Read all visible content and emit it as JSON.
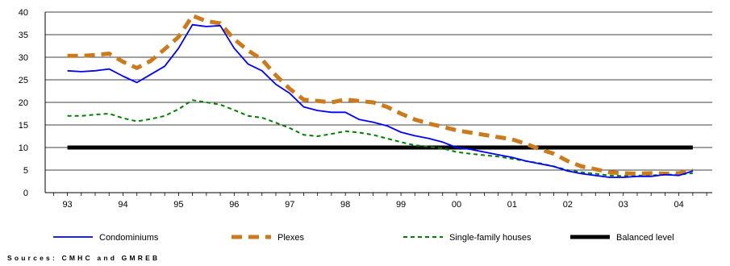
{
  "chart_data": {
    "type": "line",
    "ylim": [
      0,
      40
    ],
    "yticks": [
      0,
      5,
      10,
      15,
      20,
      25,
      30,
      35,
      40
    ],
    "categories": [
      "93",
      "94",
      "95",
      "96",
      "97",
      "98",
      "99",
      "00",
      "01",
      "02",
      "03",
      "04"
    ],
    "grid": "horizontal",
    "legend_position": "bottom",
    "series": [
      {
        "name": "Condominiums",
        "color": "#0000ff",
        "style": "solid",
        "x": [
          93.0,
          93.25,
          93.5,
          93.75,
          94.0,
          94.25,
          94.5,
          94.75,
          95.0,
          95.25,
          95.5,
          95.75,
          96.0,
          96.25,
          96.5,
          96.75,
          97.0,
          97.25,
          97.5,
          97.75,
          98.0,
          98.25,
          98.5,
          98.75,
          99.0,
          99.25,
          99.5,
          99.75,
          100.0,
          100.25,
          100.5,
          100.75,
          101.0,
          101.25,
          101.5,
          101.75,
          102.0,
          102.25,
          102.5,
          102.75,
          103.0,
          103.25,
          103.5,
          103.75,
          104.0,
          104.25
        ],
        "values": [
          27.0,
          26.8,
          27.0,
          27.4,
          25.8,
          24.4,
          26.2,
          28.0,
          32.0,
          37.2,
          36.8,
          37.0,
          32.0,
          28.5,
          27.0,
          24.0,
          22.0,
          19.0,
          18.2,
          17.8,
          17.8,
          16.2,
          15.6,
          14.8,
          13.4,
          12.6,
          12.0,
          11.2,
          10.0,
          9.6,
          9.0,
          8.4,
          7.8,
          7.0,
          6.4,
          5.8,
          4.8,
          4.2,
          3.8,
          3.4,
          3.4,
          3.6,
          3.6,
          4.0,
          3.8,
          4.8
        ]
      },
      {
        "name": "Plexes",
        "color": "#cc7a1a",
        "style": "dashed-thick",
        "x": [
          93.0,
          93.25,
          93.5,
          93.75,
          94.0,
          94.25,
          94.5,
          94.75,
          95.0,
          95.25,
          95.5,
          95.75,
          96.0,
          96.25,
          96.5,
          96.75,
          97.0,
          97.25,
          97.5,
          97.75,
          98.0,
          98.25,
          98.5,
          98.75,
          99.0,
          99.25,
          99.5,
          99.75,
          100.0,
          100.25,
          100.5,
          100.75,
          101.0,
          101.25,
          101.5,
          101.75,
          102.0,
          102.25,
          102.5,
          102.75,
          103.0,
          103.25,
          103.5,
          103.75,
          104.0,
          104.25
        ],
        "values": [
          30.3,
          30.3,
          30.5,
          30.8,
          29.0,
          27.6,
          29.2,
          31.8,
          34.5,
          39.2,
          38.0,
          37.5,
          34.0,
          31.5,
          29.5,
          26.0,
          23.0,
          20.6,
          20.3,
          20.0,
          20.6,
          20.3,
          20.0,
          19.0,
          17.5,
          16.2,
          15.3,
          14.6,
          13.8,
          13.3,
          12.8,
          12.3,
          11.8,
          10.8,
          9.6,
          8.6,
          7.0,
          5.8,
          5.2,
          4.5,
          4.3,
          4.2,
          4.3,
          4.2,
          4.3,
          5.0
        ]
      },
      {
        "name": "Single-family houses",
        "color": "#008000",
        "style": "dashed",
        "x": [
          93.0,
          93.25,
          93.5,
          93.75,
          94.0,
          94.25,
          94.5,
          94.75,
          95.0,
          95.25,
          95.5,
          95.75,
          96.0,
          96.25,
          96.5,
          96.75,
          97.0,
          97.25,
          97.5,
          97.75,
          98.0,
          98.25,
          98.5,
          98.75,
          99.0,
          99.25,
          99.5,
          99.75,
          100.0,
          100.25,
          100.5,
          100.75,
          101.0,
          101.25,
          101.5,
          101.75,
          102.0,
          102.25,
          102.5,
          102.75,
          103.0,
          103.25,
          103.5,
          103.75,
          104.0,
          104.25
        ],
        "values": [
          17.0,
          17.0,
          17.3,
          17.5,
          16.5,
          15.8,
          16.3,
          17.0,
          18.5,
          20.5,
          20.0,
          19.5,
          18.3,
          17.0,
          16.6,
          15.5,
          14.3,
          12.8,
          12.5,
          13.0,
          13.6,
          13.3,
          12.8,
          12.0,
          11.2,
          10.5,
          10.2,
          9.8,
          9.0,
          8.6,
          8.3,
          8.0,
          7.5,
          7.0,
          6.5,
          5.8,
          5.0,
          4.5,
          4.2,
          3.8,
          3.7,
          3.8,
          3.8,
          4.0,
          4.0,
          4.3
        ]
      },
      {
        "name": "Balanced level",
        "color": "#000000",
        "style": "solid-thick",
        "x": [
          93.0,
          104.25
        ],
        "values": [
          10,
          10
        ]
      }
    ],
    "source_note": "Sources: CMHC and GMREB"
  }
}
